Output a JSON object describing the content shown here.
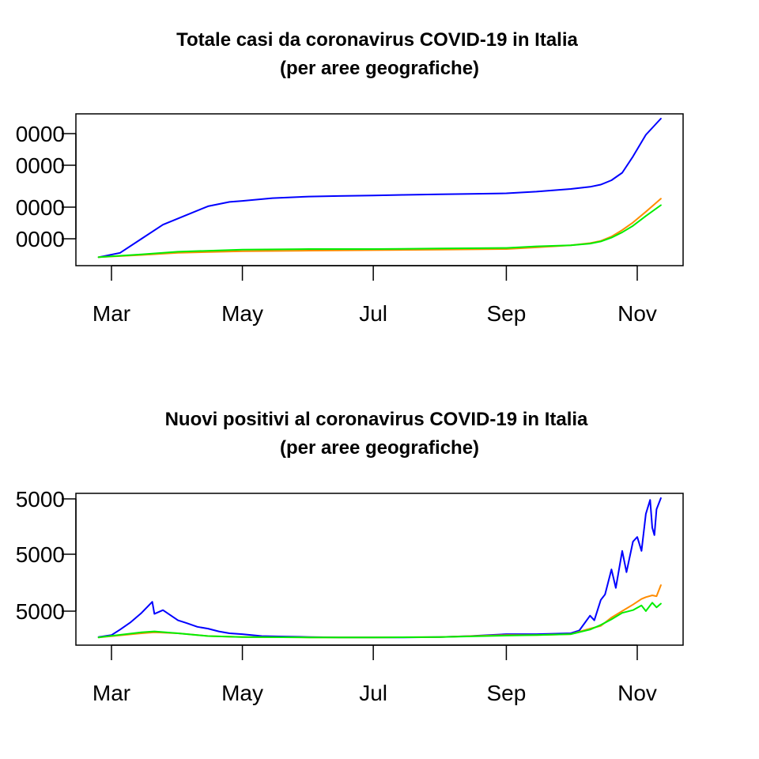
{
  "chart_data": [
    {
      "type": "line",
      "title": "Totale casi da coronavirus COVID-19 in Italia",
      "subtitle": "(per aree geografiche)",
      "xlabel": "",
      "ylabel": "",
      "x_ticks": [
        "Mar",
        "May",
        "Jul",
        "Sep",
        "Nov"
      ],
      "y_ticks": [
        "0000",
        "0000",
        "0000",
        "0000"
      ],
      "grid": false,
      "series": [
        {
          "color": "#0000ff",
          "x": [
            "Feb 24",
            "Mar 5",
            "Mar 15",
            "Mar 25",
            "Apr 5",
            "Apr 15",
            "Apr 25",
            "May 1",
            "May 15",
            "Jun 1",
            "Jun 15",
            "Jul 1",
            "Jul 15",
            "Aug 1",
            "Aug 15",
            "Sep 1",
            "Sep 15",
            "Oct 1",
            "Oct 10",
            "Oct 15",
            "Oct 20",
            "Oct 25",
            "Oct 30",
            "Nov 5",
            "Nov 12"
          ],
          "values": [
            0.02,
            0.06,
            0.19,
            0.32,
            0.41,
            0.49,
            0.53,
            0.54,
            0.565,
            0.58,
            0.585,
            0.59,
            0.595,
            0.6,
            0.605,
            0.61,
            0.625,
            0.65,
            0.67,
            0.69,
            0.73,
            0.8,
            0.95,
            1.15,
            1.3
          ]
        },
        {
          "color": "#ff8c00",
          "x": [
            "Feb 24",
            "Mar 15",
            "Apr 1",
            "May 1",
            "Jun 1",
            "Jul 1",
            "Aug 1",
            "Sep 1",
            "Sep 15",
            "Oct 1",
            "Oct 10",
            "Oct 15",
            "Oct 20",
            "Oct 25",
            "Oct 30",
            "Nov 5",
            "Nov 12"
          ],
          "values": [
            0.02,
            0.04,
            0.06,
            0.075,
            0.08,
            0.085,
            0.09,
            0.095,
            0.11,
            0.13,
            0.15,
            0.17,
            0.21,
            0.27,
            0.34,
            0.44,
            0.56
          ]
        },
        {
          "color": "#00ee00",
          "x": [
            "Feb 24",
            "Mar 15",
            "Apr 1",
            "May 1",
            "Jun 1",
            "Jul 1",
            "Aug 1",
            "Sep 1",
            "Sep 15",
            "Oct 1",
            "Oct 10",
            "Oct 15",
            "Oct 20",
            "Oct 25",
            "Oct 30",
            "Nov 5",
            "Nov 12"
          ],
          "values": [
            0.02,
            0.045,
            0.07,
            0.09,
            0.095,
            0.095,
            0.1,
            0.105,
            0.12,
            0.13,
            0.145,
            0.165,
            0.2,
            0.25,
            0.31,
            0.4,
            0.5
          ]
        }
      ]
    },
    {
      "type": "line",
      "title": "Nuovi positivi al coronavirus COVID-19 in Italia",
      "subtitle": "(per aree geografiche)",
      "xlabel": "",
      "ylabel": "",
      "x_ticks": [
        "Mar",
        "May",
        "Jul",
        "Sep",
        "Nov"
      ],
      "y_ticks": [
        "5000",
        "5000",
        "5000"
      ],
      "grid": false,
      "series": [
        {
          "color": "#0000ff",
          "x": [
            "Feb 24",
            "Mar 1",
            "Mar 5",
            "Mar 10",
            "Mar 15",
            "Mar 20",
            "Mar 21",
            "Mar 25",
            "Apr 1",
            "Apr 5",
            "Apr 10",
            "Apr 15",
            "Apr 20",
            "Apr 25",
            "May 1",
            "May 10",
            "May 20",
            "Jun 1",
            "Jun 15",
            "Jul 1",
            "Jul 15",
            "Aug 1",
            "Aug 15",
            "Sep 1",
            "Sep 15",
            "Oct 1",
            "Oct 5",
            "Oct 10",
            "Oct 12",
            "Oct 15",
            "Oct 17",
            "Oct 20",
            "Oct 22",
            "Oct 25",
            "Oct 27",
            "Oct 30",
            "Nov 1",
            "Nov 3",
            "Nov 5",
            "Nov 7",
            "Nov 8",
            "Nov 9",
            "Nov 10",
            "Nov 12"
          ],
          "values": [
            0.02,
            0.04,
            0.1,
            0.18,
            0.28,
            0.4,
            0.27,
            0.31,
            0.2,
            0.17,
            0.13,
            0.11,
            0.08,
            0.06,
            0.05,
            0.03,
            0.025,
            0.02,
            0.015,
            0.015,
            0.015,
            0.02,
            0.03,
            0.05,
            0.05,
            0.06,
            0.09,
            0.25,
            0.2,
            0.42,
            0.48,
            0.75,
            0.55,
            0.95,
            0.72,
            1.05,
            1.1,
            0.95,
            1.35,
            1.5,
            1.2,
            1.12,
            1.4,
            1.52
          ]
        },
        {
          "color": "#ff8c00",
          "x": [
            "Feb 24",
            "Mar 15",
            "Mar 21",
            "Apr 1",
            "Apr 15",
            "May 1",
            "Jun 1",
            "Jul 1",
            "Aug 1",
            "Sep 1",
            "Sep 15",
            "Oct 1",
            "Oct 10",
            "Oct 15",
            "Oct 20",
            "Oct 25",
            "Oct 30",
            "Nov 3",
            "Nov 5",
            "Nov 8",
            "Nov 10",
            "Nov 12"
          ],
          "values": [
            0.015,
            0.06,
            0.07,
            0.06,
            0.03,
            0.02,
            0.015,
            0.015,
            0.02,
            0.04,
            0.04,
            0.05,
            0.11,
            0.14,
            0.23,
            0.3,
            0.37,
            0.43,
            0.45,
            0.47,
            0.46,
            0.58
          ]
        },
        {
          "color": "#00ee00",
          "x": [
            "Feb 24",
            "Mar 15",
            "Mar 21",
            "Apr 1",
            "Apr 15",
            "May 1",
            "Jun 1",
            "Jul 1",
            "Aug 1",
            "Sep 1",
            "Sep 15",
            "Oct 1",
            "Oct 10",
            "Oct 15",
            "Oct 20",
            "Oct 25",
            "Oct 30",
            "Nov 3",
            "Nov 5",
            "Nov 8",
            "Nov 10",
            "Nov 12"
          ],
          "values": [
            0.015,
            0.07,
            0.08,
            0.06,
            0.03,
            0.02,
            0.015,
            0.015,
            0.02,
            0.035,
            0.04,
            0.05,
            0.1,
            0.15,
            0.21,
            0.28,
            0.31,
            0.36,
            0.3,
            0.39,
            0.34,
            0.38
          ]
        }
      ]
    }
  ]
}
